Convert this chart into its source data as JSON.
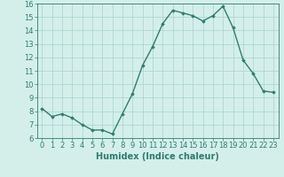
{
  "x": [
    0,
    1,
    2,
    3,
    4,
    5,
    6,
    7,
    8,
    9,
    10,
    11,
    12,
    13,
    14,
    15,
    16,
    17,
    18,
    19,
    20,
    21,
    22,
    23
  ],
  "y": [
    8.2,
    7.6,
    7.8,
    7.5,
    7.0,
    6.6,
    6.6,
    6.3,
    7.8,
    9.3,
    11.4,
    12.8,
    14.5,
    15.5,
    15.3,
    15.1,
    14.7,
    15.1,
    15.8,
    14.2,
    11.8,
    10.8,
    9.5,
    9.4
  ],
  "line_color": "#2e7d6e",
  "marker": "D",
  "marker_size": 1.8,
  "line_width": 1.0,
  "xlabel": "Humidex (Indice chaleur)",
  "xlim": [
    -0.5,
    23.5
  ],
  "ylim": [
    6,
    16
  ],
  "yticks": [
    6,
    7,
    8,
    9,
    10,
    11,
    12,
    13,
    14,
    15,
    16
  ],
  "xticks": [
    0,
    1,
    2,
    3,
    4,
    5,
    6,
    7,
    8,
    9,
    10,
    11,
    12,
    13,
    14,
    15,
    16,
    17,
    18,
    19,
    20,
    21,
    22,
    23
  ],
  "bg_color": "#d4efea",
  "grid_color": "#aed6d0",
  "tick_color": "#2e7d6e",
  "tick_label_fontsize": 6,
  "xlabel_fontsize": 7
}
